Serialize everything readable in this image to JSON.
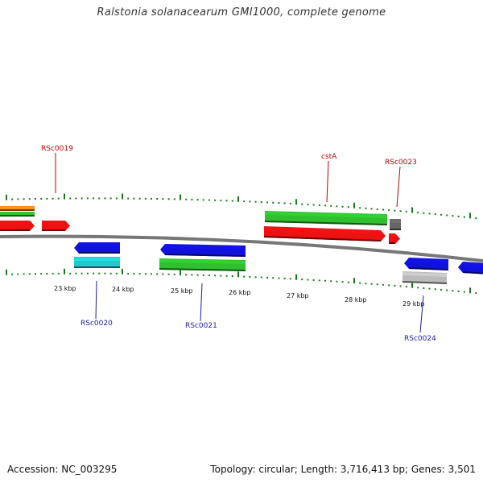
{
  "title": "Ralstonia solanacearum GMI1000, complete genome",
  "footer": {
    "accession": "Accession: NC_003295",
    "summary": "Topology: circular; Length: 3,716,413 bp; Genes: 3,501"
  },
  "colors": {
    "backbone": "#7f7f7f",
    "tick": "#1a7a1a",
    "forward_label": "#c00000",
    "reverse_label": "#1a1aa8",
    "red": "#ee1111",
    "green": "#2fbf2f",
    "blue": "#1111dd",
    "cyan": "#22c8cc",
    "orange": "#ff8c1a",
    "gray": "#666666",
    "lightgray": "#bbbbbb"
  },
  "scale_labels": [
    "23 kbp",
    "24 kbp",
    "25 kbp",
    "26 kbp",
    "27 kbp",
    "28 kbp",
    "29 kbp"
  ],
  "gene_labels": [
    {
      "text": "RSc0019",
      "strand": "forward"
    },
    {
      "text": "cstA",
      "strand": "forward"
    },
    {
      "text": "RSc0023",
      "strand": "forward"
    },
    {
      "text": "RSc0020",
      "strand": "reverse"
    },
    {
      "text": "RSc0021",
      "strand": "reverse"
    },
    {
      "text": "RSc0024",
      "strand": "reverse"
    }
  ]
}
